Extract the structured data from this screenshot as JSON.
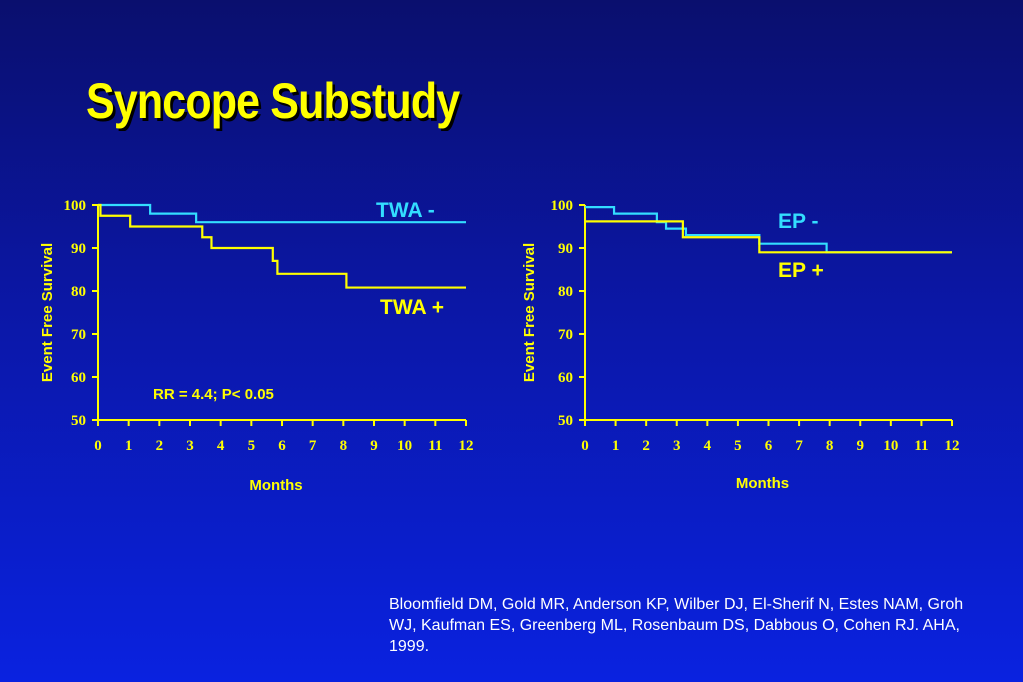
{
  "title": "Syncope Substudy",
  "citation": "Bloomfield DM, Gold MR, Anderson KP, Wilber DJ, El-Sherif N, Estes NAM, Groh WJ, Kaufman ES, Greenberg ML, Rosenbaum DS, Dabbous O, Cohen RJ.  AHA, 1999.",
  "colors": {
    "axis": "#ffff00",
    "cyan_series": "#33ddff",
    "yellow_series": "#ffff00",
    "title": "#ffff00"
  },
  "chart_data": [
    {
      "type": "line",
      "step": "post",
      "title": "",
      "xlabel": "Months",
      "ylabel": "Event Free Survival",
      "xlim": [
        0,
        12
      ],
      "ylim": [
        50,
        100
      ],
      "xticks": [
        "0",
        "1",
        "2",
        "3",
        "4",
        "5",
        "6",
        "7",
        "8",
        "9",
        "10",
        "11",
        "12"
      ],
      "yticks": [
        "50",
        "60",
        "70",
        "80",
        "90",
        "100"
      ],
      "annotation": "RR = 4.4; P< 0.05",
      "series": [
        {
          "name": "TWA -",
          "color": "#33ddff",
          "x": [
            0,
            1.7,
            3.2,
            12
          ],
          "y": [
            100,
            98,
            96,
            96
          ]
        },
        {
          "name": "TWA +",
          "color": "#ffff00",
          "x": [
            0,
            0.08,
            1.05,
            3.4,
            3.7,
            5.7,
            5.85,
            8.1,
            12
          ],
          "y": [
            100,
            97.5,
            95,
            92.5,
            90,
            87,
            84,
            80.8,
            80.8
          ]
        }
      ]
    },
    {
      "type": "line",
      "step": "post",
      "title": "",
      "xlabel": "Months",
      "ylabel": "Event Free Survival",
      "xlim": [
        0,
        12
      ],
      "ylim": [
        50,
        100
      ],
      "xticks": [
        "0",
        "1",
        "2",
        "3",
        "4",
        "5",
        "6",
        "7",
        "8",
        "9",
        "10",
        "11",
        "12"
      ],
      "yticks": [
        "50",
        "60",
        "70",
        "80",
        "90",
        "100"
      ],
      "series": [
        {
          "name": "EP -",
          "color": "#33ddff",
          "x": [
            0,
            0.95,
            2.35,
            2.65,
            3.3,
            5.6,
            5.7,
            7.9,
            12
          ],
          "y": [
            99.5,
            98,
            96,
            94.5,
            93,
            93,
            91,
            89,
            89
          ]
        },
        {
          "name": "EP +",
          "color": "#ffff00",
          "x": [
            0,
            3.2,
            5.7,
            12
          ],
          "y": [
            96.2,
            92.5,
            89,
            89
          ]
        }
      ]
    }
  ]
}
